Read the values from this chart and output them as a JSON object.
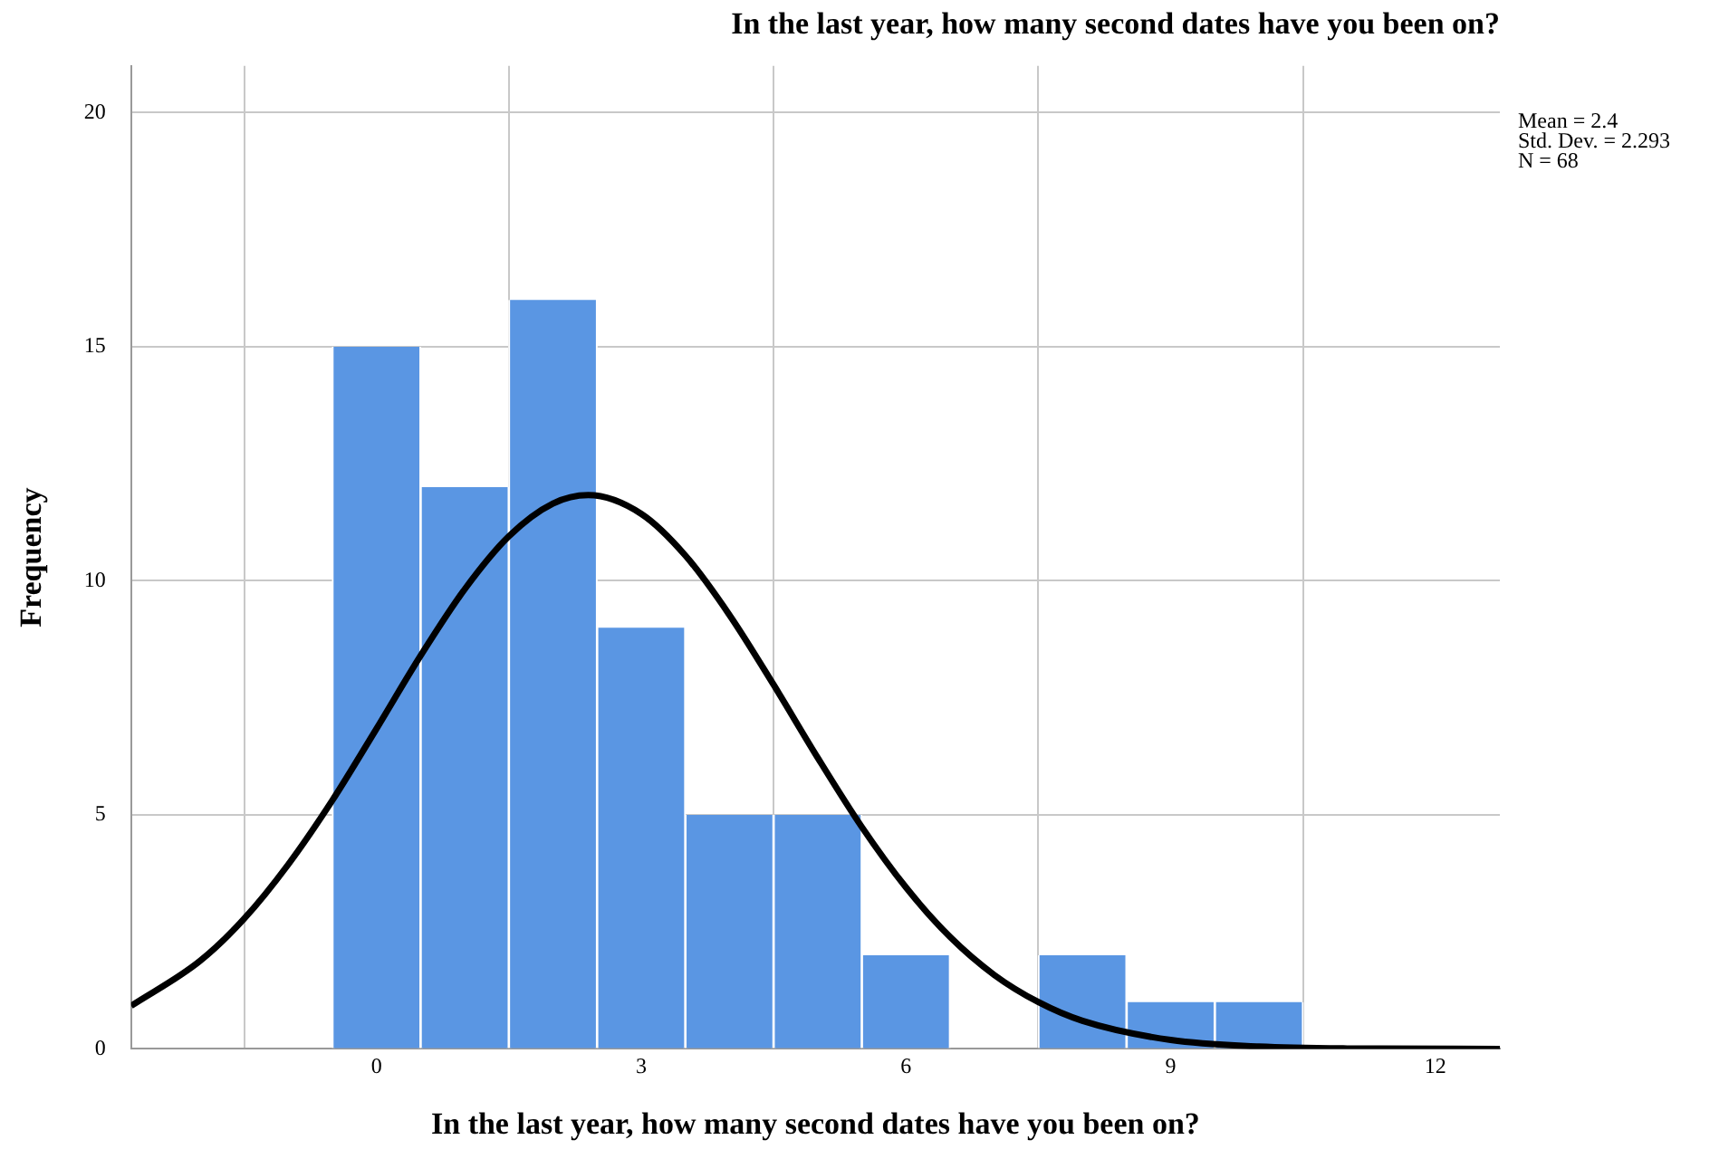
{
  "chart_data": {
    "type": "histogram",
    "title": "In the last year, how many second dates have you been on?",
    "xlabel": "In the last year, how many second dates have you been on?",
    "ylabel": "Frequency",
    "bins": [
      -0.5,
      0.5,
      1.5,
      2.5,
      3.5,
      4.5,
      5.5,
      6.5,
      7.5,
      8.5,
      9.5,
      10.5
    ],
    "values": [
      15,
      12,
      16,
      9,
      5,
      5,
      2,
      0,
      2,
      1,
      1
    ],
    "color": "#5a96e3",
    "series": [
      {
        "type": "line",
        "color": "#000000",
        "x": [
          -2.78,
          -2,
          -1.5,
          -1,
          -0.5,
          0,
          0.5,
          1,
          1.5,
          2,
          2.4,
          3,
          3.5,
          4,
          4.5,
          5,
          5.5,
          6,
          6.5,
          7,
          7.5,
          8,
          9,
          10,
          11,
          12.73
        ],
        "values": [
          0.92,
          1.88,
          2.78,
          3.94,
          5.31,
          6.84,
          8.4,
          9.82,
          10.95,
          11.65,
          11.83,
          11.43,
          10.54,
          9.27,
          7.78,
          6.22,
          4.74,
          3.45,
          2.39,
          1.58,
          1.0,
          0.6,
          0.19,
          0.05,
          0.01,
          0
        ]
      }
    ],
    "xlim": [
      -2.78,
      12.73
    ],
    "xticks": [
      0,
      3,
      6,
      9,
      12
    ],
    "ylim": [
      0,
      21
    ],
    "yticks": [
      0,
      5,
      10,
      15,
      20
    ],
    "grid": true,
    "annotations": [
      "Mean = 2.4",
      "Std. Dev. = 2.293",
      "N = 68"
    ]
  }
}
